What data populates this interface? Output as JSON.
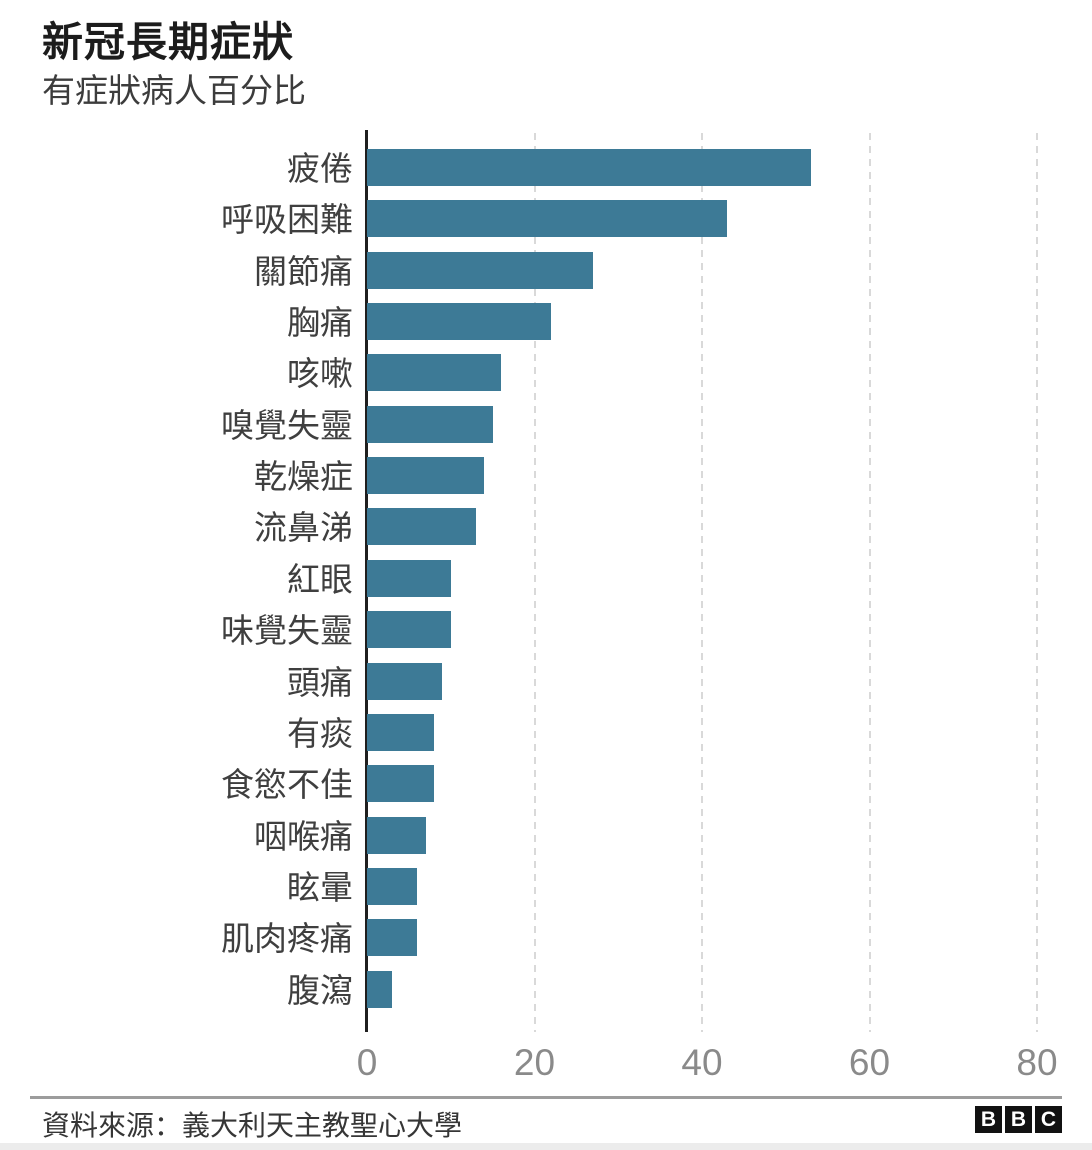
{
  "header": {
    "title": "新冠長期症狀",
    "subtitle": "有症狀病人百分比"
  },
  "chart_data": {
    "type": "bar",
    "orientation": "horizontal",
    "title": "新冠長期症狀",
    "subtitle": "有症狀病人百分比",
    "categories": [
      "疲倦",
      "呼吸困難",
      "關節痛",
      "胸痛",
      "咳嗽",
      "嗅覺失靈",
      "乾燥症",
      "流鼻涕",
      "紅眼",
      "味覺失靈",
      "頭痛",
      "有痰",
      "食慾不佳",
      "咽喉痛",
      "眩暈",
      "肌肉疼痛",
      "腹瀉"
    ],
    "values": [
      53,
      43,
      27,
      22,
      16,
      15,
      14,
      13,
      10,
      10,
      9,
      8,
      8,
      7,
      6,
      6,
      3
    ],
    "xlabel": "",
    "ylabel": "",
    "xlim": [
      0,
      80
    ],
    "x_ticks": [
      0,
      20,
      40,
      60,
      80
    ],
    "grid": "vertical-dashed",
    "legend": "none",
    "bar_color": "#3d7a96",
    "gridline_color": "#d9d9d9",
    "axis_color": "#1f1f1f"
  },
  "footer": {
    "source_label": "資料來源：義大利天主教聖心大學",
    "logo_letters": [
      "B",
      "B",
      "C"
    ]
  }
}
